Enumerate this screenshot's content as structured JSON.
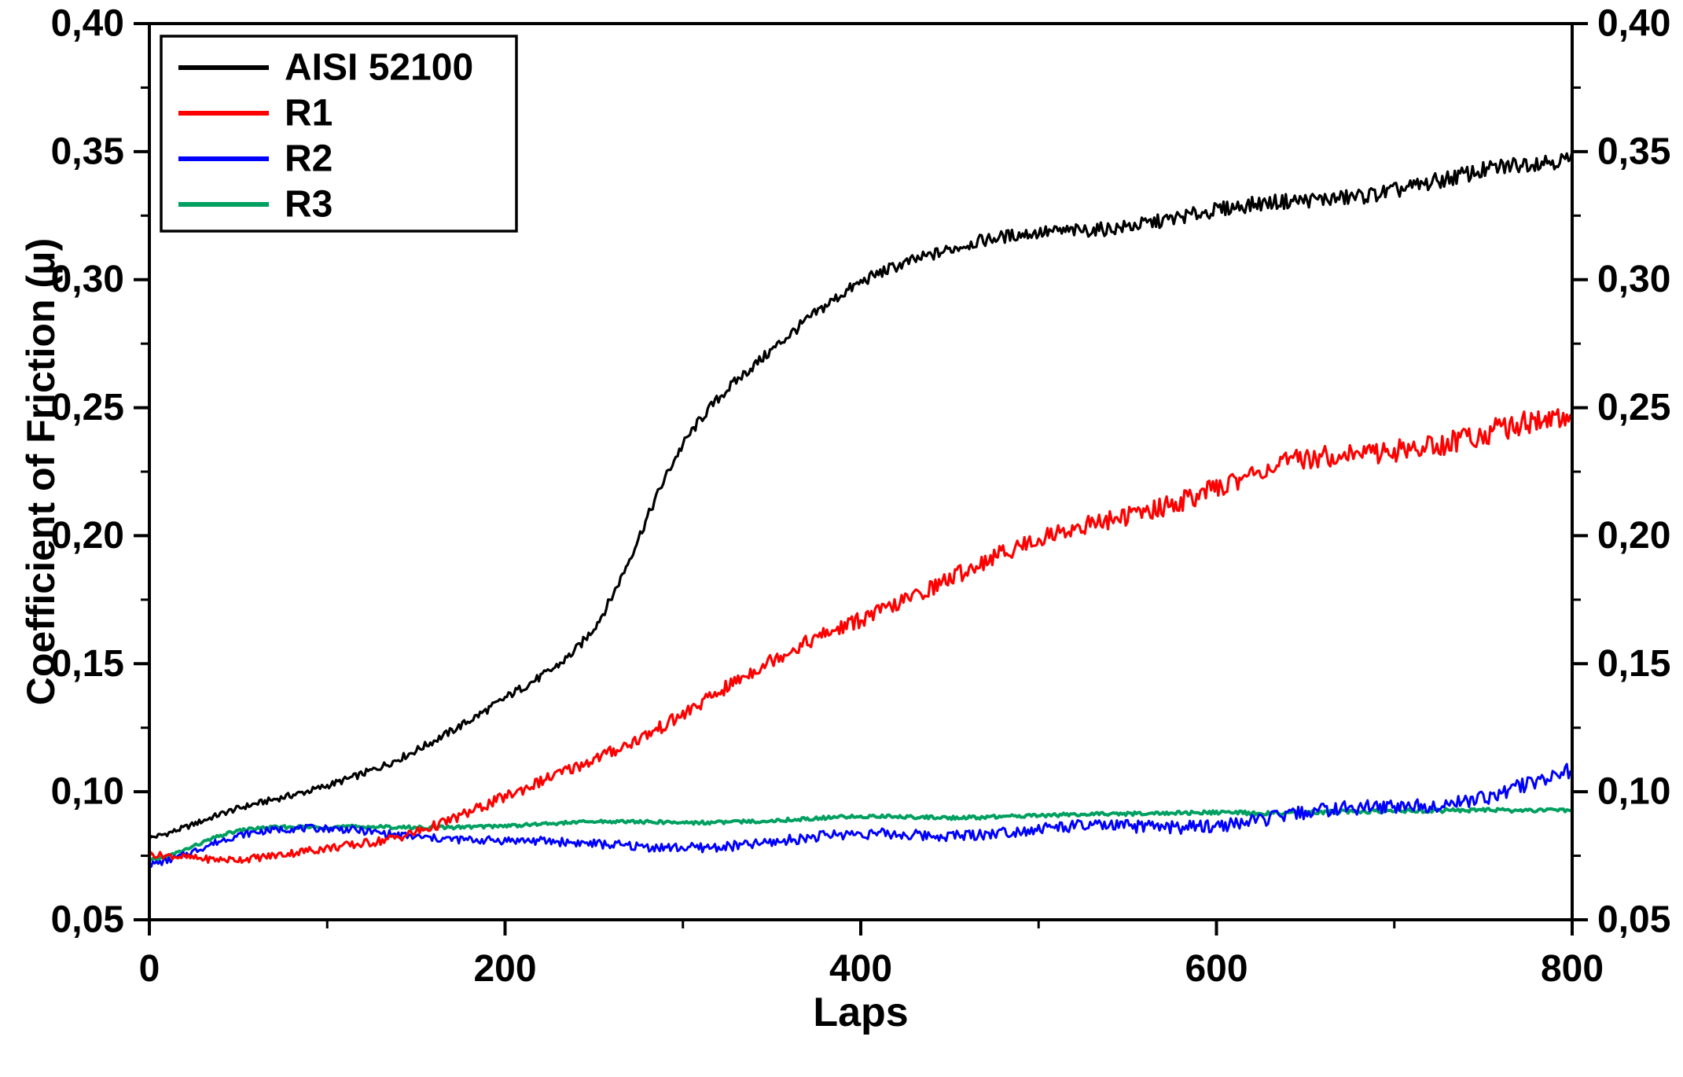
{
  "chart_data": {
    "type": "line",
    "title": "",
    "xlabel": "Laps",
    "ylabel": "Coefficient of Friction (μ)",
    "xlim": [
      0,
      800
    ],
    "ylim": [
      0.05,
      0.4
    ],
    "x_ticks": [
      0,
      200,
      400,
      600,
      800
    ],
    "x_tick_labels": [
      "0",
      "200",
      "400",
      "600",
      "800"
    ],
    "x_minor_ticks": [
      100,
      300,
      500,
      700
    ],
    "y_ticks": [
      0.05,
      0.1,
      0.15,
      0.2,
      0.25,
      0.3,
      0.35,
      0.4
    ],
    "y_tick_labels": [
      "0,05",
      "0,10",
      "0,15",
      "0,20",
      "0,25",
      "0,30",
      "0,35",
      "0,40"
    ],
    "y_minor_ticks": [
      0.075,
      0.125,
      0.175,
      0.225,
      0.275,
      0.325,
      0.375
    ],
    "decimal_separator": ",",
    "grid": false,
    "legend_position": "top-left",
    "frame_color": "#000000",
    "text_color": "#000000",
    "background_color": "#ffffff",
    "series": [
      {
        "name": "AISI 52100",
        "color": "#000000",
        "line_width": 3.2,
        "x": [
          0,
          50,
          100,
          150,
          200,
          250,
          300,
          350,
          400,
          450,
          500,
          550,
          600,
          650,
          700,
          750,
          800
        ],
        "y": [
          0.082,
          0.093,
          0.103,
          0.116,
          0.136,
          0.165,
          0.235,
          0.272,
          0.3,
          0.311,
          0.318,
          0.322,
          0.326,
          0.331,
          0.336,
          0.341,
          0.347
        ],
        "noise": [
          0.001,
          0.0035
        ]
      },
      {
        "name": "R1",
        "color": "#ff0000",
        "line_width": 3.2,
        "x": [
          0,
          50,
          100,
          150,
          200,
          250,
          300,
          350,
          400,
          450,
          500,
          550,
          600,
          650,
          700,
          750,
          800
        ],
        "y": [
          0.076,
          0.073,
          0.078,
          0.085,
          0.097,
          0.113,
          0.131,
          0.15,
          0.168,
          0.184,
          0.197,
          0.209,
          0.219,
          0.228,
          0.235,
          0.24,
          0.244
        ],
        "noise": [
          0.0012,
          0.005
        ]
      },
      {
        "name": "R2",
        "color": "#0000ff",
        "line_width": 3.0,
        "x": [
          0,
          50,
          100,
          150,
          200,
          250,
          300,
          350,
          400,
          450,
          500,
          550,
          600,
          650,
          700,
          750,
          800
        ],
        "y": [
          0.072,
          0.083,
          0.085,
          0.083,
          0.081,
          0.079,
          0.079,
          0.08,
          0.083,
          0.084,
          0.085,
          0.086,
          0.088,
          0.091,
          0.094,
          0.099,
          0.107
        ],
        "noise": [
          0.0012,
          0.003
        ]
      },
      {
        "name": "R3",
        "color": "#00a060",
        "line_width": 4.0,
        "x": [
          0,
          50,
          100,
          150,
          200,
          250,
          300,
          350,
          400,
          450,
          500,
          550,
          600,
          650,
          700,
          750,
          800
        ],
        "y": [
          0.073,
          0.085,
          0.086,
          0.086,
          0.087,
          0.088,
          0.088,
          0.089,
          0.09,
          0.09,
          0.091,
          0.091,
          0.092,
          0.092,
          0.092,
          0.093,
          0.093
        ],
        "noise": [
          0.0006,
          0.0008
        ]
      }
    ]
  }
}
